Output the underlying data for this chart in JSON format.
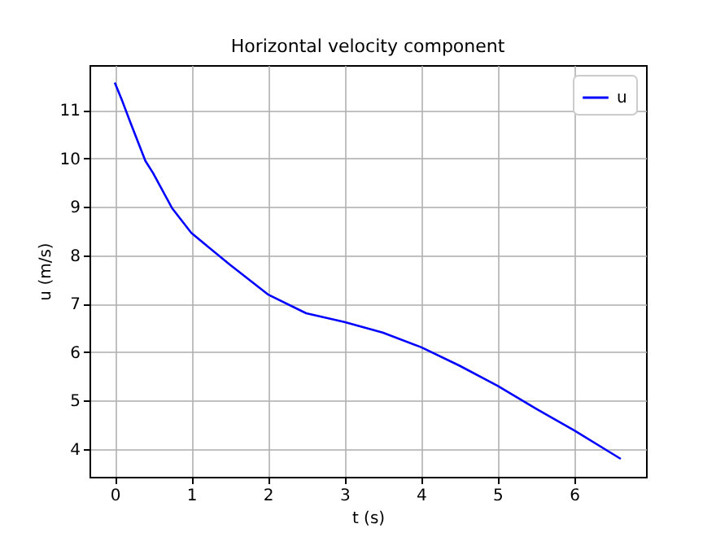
{
  "chart_data": {
    "type": "line",
    "title": "Horizontal velocity component",
    "xlabel": "t (s)",
    "ylabel": "u (m/s)",
    "x": [
      0,
      0.1,
      0.2,
      0.4,
      0.5,
      0.75,
      1,
      1.5,
      2,
      2.5,
      3,
      3.5,
      4,
      4.5,
      5,
      5.5,
      6,
      6.61
    ],
    "series": [
      {
        "name": "u",
        "color": "#0000ff",
        "values": [
          11.57,
          11.18,
          10.76,
          9.95,
          9.7,
          8.97,
          8.46,
          7.81,
          7.19,
          6.8,
          6.62,
          6.4,
          6.1,
          5.72,
          5.3,
          4.83,
          4.38,
          3.79
        ]
      }
    ],
    "xlim": [
      -0.33,
      6.94
    ],
    "ylim": [
      3.42,
      11.93
    ],
    "xticks": [
      0,
      1,
      2,
      3,
      4,
      5,
      6
    ],
    "yticks": [
      4,
      5,
      6,
      7,
      8,
      9,
      10,
      11
    ],
    "grid": true,
    "legend": "top right",
    "marker": "none",
    "line_style": "solid"
  }
}
